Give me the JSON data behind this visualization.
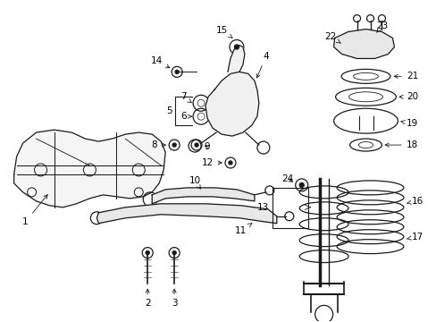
{
  "bg_color": "#ffffff",
  "fig_width": 4.89,
  "fig_height": 3.6,
  "dpi": 100,
  "part_color": "#1a1a1a",
  "label_fs": 7.5,
  "arrow_lw": 0.6
}
